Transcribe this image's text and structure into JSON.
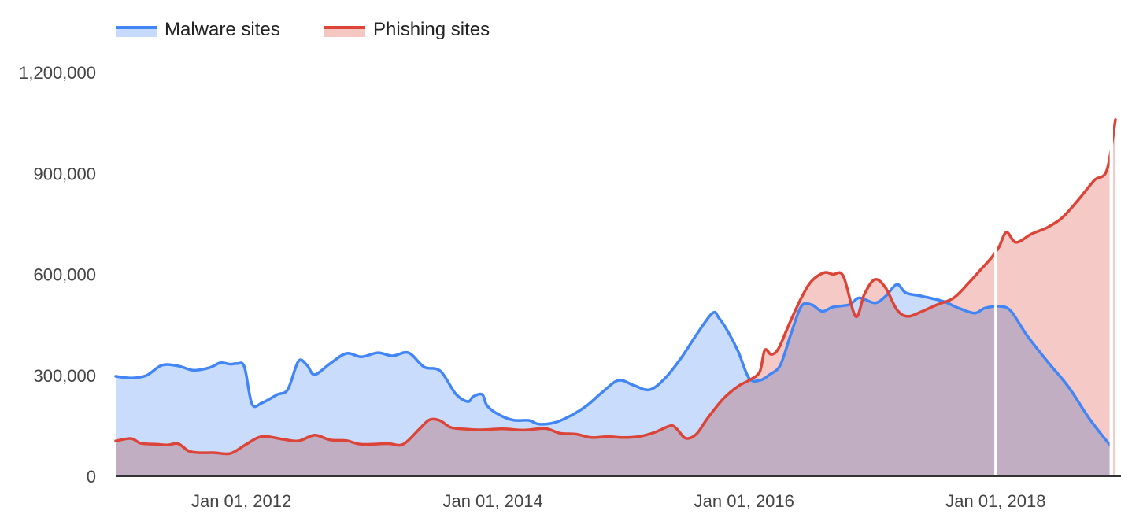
{
  "chart_data": {
    "type": "area",
    "title": "",
    "xlabel": "",
    "ylabel": "",
    "legend_position": "top-left",
    "grid": false,
    "x_range": [
      "2011-01-01",
      "2018-12-31"
    ],
    "ylim": [
      0,
      1200000
    ],
    "y_ticks": [
      0,
      300000,
      600000,
      900000,
      1200000
    ],
    "y_tick_labels": [
      "0",
      "300,000",
      "600,000",
      "900,000",
      "1,200,000"
    ],
    "x_ticks": [
      "2012-01-01",
      "2014-01-01",
      "2016-01-01",
      "2018-01-01"
    ],
    "x_tick_labels": [
      "Jan 01, 2012",
      "Jan 01, 2014",
      "Jan 01, 2016",
      "Jan 01, 2018"
    ],
    "series": [
      {
        "name": "Malware sites",
        "color": "#4285f4",
        "fill": "#c6dafc",
        "points": [
          [
            "2011-01-01",
            297000
          ],
          [
            "2011-02-15",
            292000
          ],
          [
            "2011-04-01",
            300000
          ],
          [
            "2011-05-15",
            330000
          ],
          [
            "2011-07-01",
            328000
          ],
          [
            "2011-08-15",
            315000
          ],
          [
            "2011-10-01",
            323000
          ],
          [
            "2011-11-01",
            337000
          ],
          [
            "2011-12-01",
            333000
          ],
          [
            "2011-12-20",
            335000
          ],
          [
            "2012-01-10",
            325000
          ],
          [
            "2012-02-01",
            215000
          ],
          [
            "2012-03-01",
            218000
          ],
          [
            "2012-04-15",
            243000
          ],
          [
            "2012-05-15",
            258000
          ],
          [
            "2012-06-15",
            342000
          ],
          [
            "2012-07-10",
            330000
          ],
          [
            "2012-08-01",
            302000
          ],
          [
            "2012-09-15",
            335000
          ],
          [
            "2012-11-01",
            365000
          ],
          [
            "2012-12-15",
            355000
          ],
          [
            "2013-02-01",
            367000
          ],
          [
            "2013-03-15",
            358000
          ],
          [
            "2013-05-01",
            367000
          ],
          [
            "2013-06-15",
            325000
          ],
          [
            "2013-08-01",
            313000
          ],
          [
            "2013-09-15",
            245000
          ],
          [
            "2013-10-20",
            222000
          ],
          [
            "2013-11-05",
            237000
          ],
          [
            "2013-12-01",
            243000
          ],
          [
            "2013-12-15",
            210000
          ],
          [
            "2014-01-15",
            185000
          ],
          [
            "2014-03-01",
            167000
          ],
          [
            "2014-04-15",
            166000
          ],
          [
            "2014-05-15",
            155000
          ],
          [
            "2014-07-01",
            160000
          ],
          [
            "2014-08-15",
            180000
          ],
          [
            "2014-10-01",
            210000
          ],
          [
            "2014-11-15",
            250000
          ],
          [
            "2015-01-01",
            285000
          ],
          [
            "2015-02-15",
            270000
          ],
          [
            "2015-04-01",
            257000
          ],
          [
            "2015-05-15",
            290000
          ],
          [
            "2015-07-01",
            350000
          ],
          [
            "2015-08-15",
            420000
          ],
          [
            "2015-10-01",
            485000
          ],
          [
            "2015-10-20",
            470000
          ],
          [
            "2015-11-15",
            430000
          ],
          [
            "2015-12-15",
            370000
          ],
          [
            "2016-01-15",
            292000
          ],
          [
            "2016-02-15",
            285000
          ],
          [
            "2016-03-15",
            302000
          ],
          [
            "2016-04-15",
            330000
          ],
          [
            "2016-05-15",
            420000
          ],
          [
            "2016-06-15",
            505000
          ],
          [
            "2016-07-15",
            510000
          ],
          [
            "2016-08-15",
            490000
          ],
          [
            "2016-09-15",
            503000
          ],
          [
            "2016-11-01",
            510000
          ],
          [
            "2016-12-01",
            530000
          ],
          [
            "2017-01-15",
            515000
          ],
          [
            "2017-02-15",
            535000
          ],
          [
            "2017-03-20",
            570000
          ],
          [
            "2017-04-15",
            545000
          ],
          [
            "2017-06-01",
            535000
          ],
          [
            "2017-08-01",
            520000
          ],
          [
            "2017-09-15",
            500000
          ],
          [
            "2017-11-01",
            485000
          ],
          [
            "2017-12-01",
            500000
          ],
          [
            "2018-01-15",
            505000
          ],
          [
            "2018-02-15",
            490000
          ],
          [
            "2018-04-01",
            420000
          ],
          [
            "2018-06-01",
            340000
          ],
          [
            "2018-08-01",
            265000
          ],
          [
            "2018-10-01",
            170000
          ],
          [
            "2018-12-01",
            90000
          ]
        ]
      },
      {
        "name": "Phishing sites",
        "color": "#db4437",
        "fill": "#f4c7c3",
        "points": [
          [
            "2011-01-01",
            105000
          ],
          [
            "2011-02-15",
            112000
          ],
          [
            "2011-03-15",
            98000
          ],
          [
            "2011-05-01",
            95000
          ],
          [
            "2011-06-01",
            93000
          ],
          [
            "2011-07-01",
            97000
          ],
          [
            "2011-08-01",
            75000
          ],
          [
            "2011-09-01",
            70000
          ],
          [
            "2011-10-15",
            70000
          ],
          [
            "2011-12-01",
            68000
          ],
          [
            "2012-01-15",
            95000
          ],
          [
            "2012-03-01",
            118000
          ],
          [
            "2012-05-01",
            110000
          ],
          [
            "2012-06-15",
            105000
          ],
          [
            "2012-08-01",
            122000
          ],
          [
            "2012-09-15",
            108000
          ],
          [
            "2012-11-01",
            106000
          ],
          [
            "2012-12-15",
            95000
          ],
          [
            "2013-03-01",
            97000
          ],
          [
            "2013-04-15",
            95000
          ],
          [
            "2013-06-01",
            140000
          ],
          [
            "2013-07-01",
            168000
          ],
          [
            "2013-08-01",
            165000
          ],
          [
            "2013-09-01",
            145000
          ],
          [
            "2013-10-15",
            140000
          ],
          [
            "2013-12-01",
            138000
          ],
          [
            "2014-02-01",
            141000
          ],
          [
            "2014-04-01",
            137000
          ],
          [
            "2014-06-01",
            142000
          ],
          [
            "2014-07-15",
            128000
          ],
          [
            "2014-09-01",
            125000
          ],
          [
            "2014-10-15",
            115000
          ],
          [
            "2014-12-01",
            118000
          ],
          [
            "2015-01-15",
            115000
          ],
          [
            "2015-03-01",
            118000
          ],
          [
            "2015-04-15",
            130000
          ],
          [
            "2015-06-01",
            150000
          ],
          [
            "2015-06-20",
            140000
          ],
          [
            "2015-07-15",
            113000
          ],
          [
            "2015-08-15",
            125000
          ],
          [
            "2015-09-15",
            170000
          ],
          [
            "2015-11-01",
            230000
          ],
          [
            "2015-12-15",
            268000
          ],
          [
            "2016-01-15",
            285000
          ],
          [
            "2016-02-15",
            310000
          ],
          [
            "2016-03-01",
            375000
          ],
          [
            "2016-03-20",
            362000
          ],
          [
            "2016-04-10",
            380000
          ],
          [
            "2016-05-10",
            450000
          ],
          [
            "2016-06-15",
            530000
          ],
          [
            "2016-07-15",
            580000
          ],
          [
            "2016-08-20",
            605000
          ],
          [
            "2016-09-15",
            600000
          ],
          [
            "2016-10-15",
            595000
          ],
          [
            "2016-11-20",
            475000
          ],
          [
            "2016-12-15",
            540000
          ],
          [
            "2017-01-15",
            585000
          ],
          [
            "2017-02-15",
            560000
          ],
          [
            "2017-03-20",
            495000
          ],
          [
            "2017-04-20",
            475000
          ],
          [
            "2017-06-01",
            490000
          ],
          [
            "2017-07-15",
            510000
          ],
          [
            "2017-09-01",
            530000
          ],
          [
            "2017-10-15",
            575000
          ],
          [
            "2017-11-15",
            610000
          ],
          [
            "2017-12-20",
            650000
          ],
          [
            "2018-01-10",
            680000
          ],
          [
            "2018-02-01",
            725000
          ],
          [
            "2018-03-01",
            695000
          ],
          [
            "2018-04-15",
            720000
          ],
          [
            "2018-06-01",
            740000
          ],
          [
            "2018-07-15",
            770000
          ],
          [
            "2018-09-01",
            825000
          ],
          [
            "2018-10-15",
            880000
          ],
          [
            "2018-11-20",
            910000
          ],
          [
            "2018-12-15",
            1060000
          ]
        ]
      }
    ]
  }
}
